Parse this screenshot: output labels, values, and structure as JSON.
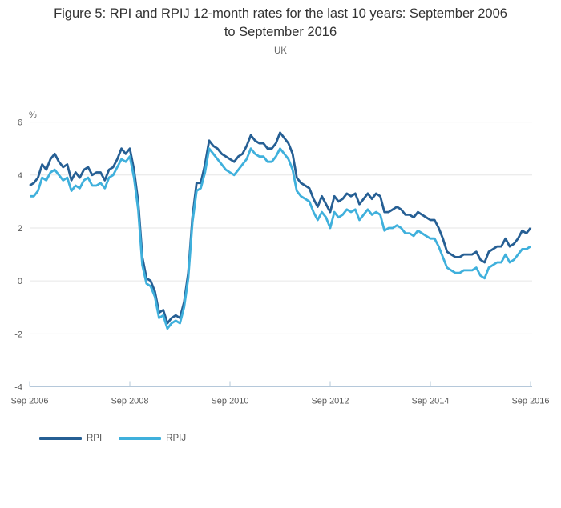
{
  "header": {
    "title_line1": "Figure 5: RPI and RPIJ 12-month rates for the last 10 years: September 2006",
    "title_line2": "to September 2016",
    "subtitle": "UK"
  },
  "chart_data": {
    "type": "line",
    "title": "Figure 5: RPI and RPIJ 12-month rates for the last 10 years: September 2006 to September 2016",
    "subtitle": "UK",
    "ylabel": "%",
    "ylim": [
      -4,
      6
    ],
    "yticks": [
      6,
      4,
      2,
      0,
      -2,
      -4
    ],
    "x_unit": "month",
    "x_range": [
      "Sep 2006",
      "Sep 2016"
    ],
    "xticklabels": [
      "Sep 2006",
      "Sep 2008",
      "Sep 2010",
      "Sep 2012",
      "Sep 2014",
      "Sep 2016"
    ],
    "xtick_month_indices": [
      0,
      24,
      48,
      72,
      96,
      120
    ],
    "grid": "horizontal",
    "legend_position": "bottom-left",
    "colors": {
      "grid": "#e6e6e6",
      "axis": "#b5c8da",
      "tick_label": "#595959",
      "title_text": "#323232"
    },
    "series": [
      {
        "name": "RPI",
        "color": "#265f94",
        "values": [
          3.6,
          3.7,
          3.9,
          4.4,
          4.2,
          4.6,
          4.8,
          4.5,
          4.3,
          4.4,
          3.8,
          4.1,
          3.9,
          4.2,
          4.3,
          4.0,
          4.1,
          4.1,
          3.8,
          4.2,
          4.3,
          4.6,
          5.0,
          4.8,
          5.0,
          4.2,
          3.0,
          0.9,
          0.1,
          0.0,
          -0.4,
          -1.2,
          -1.1,
          -1.6,
          -1.4,
          -1.3,
          -1.4,
          -0.8,
          0.3,
          2.4,
          3.7,
          3.7,
          4.4,
          5.3,
          5.1,
          5.0,
          4.8,
          4.7,
          4.6,
          4.5,
          4.7,
          4.8,
          5.1,
          5.5,
          5.3,
          5.2,
          5.2,
          5.0,
          5.0,
          5.2,
          5.6,
          5.4,
          5.2,
          4.8,
          3.9,
          3.7,
          3.6,
          3.5,
          3.1,
          2.8,
          3.2,
          2.9,
          2.6,
          3.2,
          3.0,
          3.1,
          3.3,
          3.2,
          3.3,
          2.9,
          3.1,
          3.3,
          3.1,
          3.3,
          3.2,
          2.6,
          2.6,
          2.7,
          2.8,
          2.7,
          2.5,
          2.5,
          2.4,
          2.6,
          2.5,
          2.4,
          2.3,
          2.3,
          2.0,
          1.6,
          1.1,
          1.0,
          0.9,
          0.9,
          1.0,
          1.0,
          1.0,
          1.1,
          0.8,
          0.7,
          1.1,
          1.2,
          1.3,
          1.3,
          1.6,
          1.3,
          1.4,
          1.6,
          1.9,
          1.8,
          2.0
        ]
      },
      {
        "name": "RPIJ",
        "color": "#3fb0dc",
        "values": [
          3.2,
          3.2,
          3.4,
          3.9,
          3.8,
          4.1,
          4.2,
          4.0,
          3.8,
          3.9,
          3.4,
          3.6,
          3.5,
          3.8,
          3.9,
          3.6,
          3.6,
          3.7,
          3.5,
          3.9,
          4.0,
          4.3,
          4.6,
          4.5,
          4.7,
          3.9,
          2.7,
          0.6,
          -0.1,
          -0.2,
          -0.6,
          -1.4,
          -1.3,
          -1.8,
          -1.6,
          -1.5,
          -1.6,
          -1.0,
          0.1,
          2.2,
          3.4,
          3.5,
          4.1,
          5.0,
          4.8,
          4.6,
          4.4,
          4.2,
          4.1,
          4.0,
          4.2,
          4.4,
          4.6,
          5.0,
          4.8,
          4.7,
          4.7,
          4.5,
          4.5,
          4.7,
          5.0,
          4.8,
          4.6,
          4.2,
          3.4,
          3.2,
          3.1,
          3.0,
          2.6,
          2.3,
          2.6,
          2.4,
          2.0,
          2.6,
          2.4,
          2.5,
          2.7,
          2.6,
          2.7,
          2.3,
          2.5,
          2.7,
          2.5,
          2.6,
          2.5,
          1.9,
          2.0,
          2.0,
          2.1,
          2.0,
          1.8,
          1.8,
          1.7,
          1.9,
          1.8,
          1.7,
          1.6,
          1.6,
          1.3,
          0.9,
          0.5,
          0.4,
          0.3,
          0.3,
          0.4,
          0.4,
          0.4,
          0.5,
          0.2,
          0.1,
          0.5,
          0.6,
          0.7,
          0.7,
          1.0,
          0.7,
          0.8,
          1.0,
          1.2,
          1.2,
          1.3
        ]
      }
    ]
  }
}
